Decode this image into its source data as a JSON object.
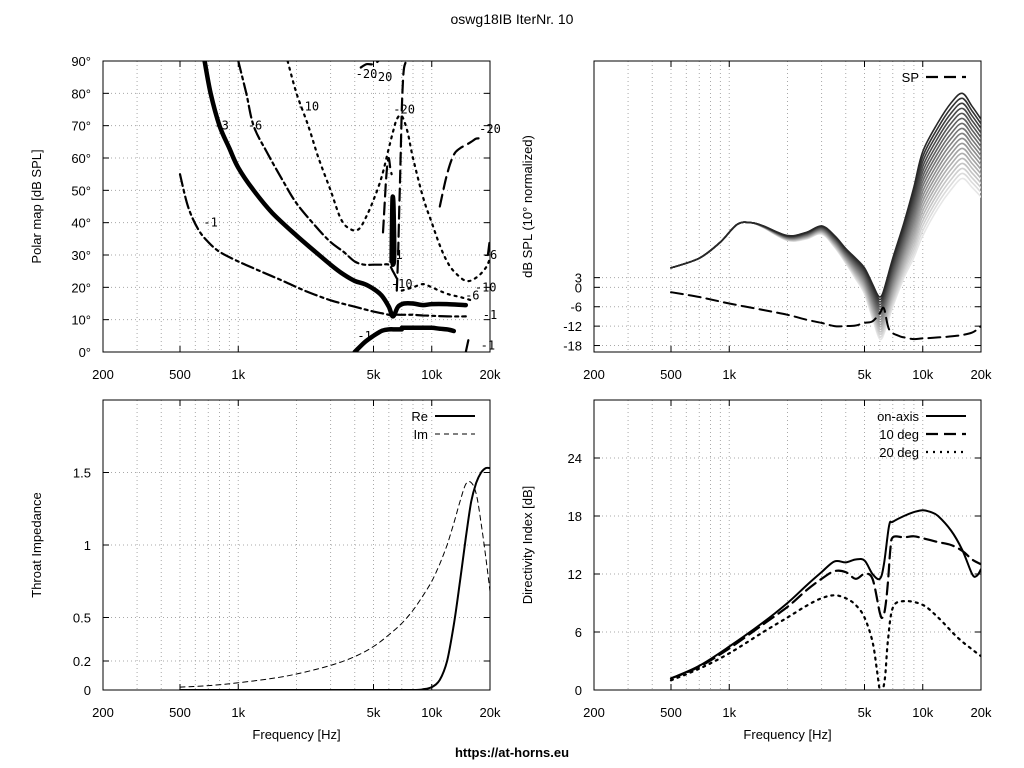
{
  "title": "oswg18IB IterNr. 10",
  "footer": "https://at-horns.eu",
  "chart_data": [
    {
      "id": "polar",
      "type": "line",
      "title": "",
      "ylabel": "Polar map [dB SPL]",
      "xlabel": "",
      "xscale": "log",
      "xlim": [
        200,
        20000
      ],
      "ylim": [
        0,
        90
      ],
      "xticks": [
        {
          "v": 200,
          "t": "200"
        },
        {
          "v": 500,
          "t": "500"
        },
        {
          "v": 1000,
          "t": "1k"
        },
        {
          "v": 5000,
          "t": "5k"
        },
        {
          "v": 10000,
          "t": "10k"
        },
        {
          "v": 20000,
          "t": "20k"
        }
      ],
      "yticks": [
        {
          "v": 0,
          "t": "0°"
        },
        {
          "v": 10,
          "t": "10°"
        },
        {
          "v": 20,
          "t": "20°"
        },
        {
          "v": 30,
          "t": "30°"
        },
        {
          "v": 40,
          "t": "40°"
        },
        {
          "v": 50,
          "t": "50°"
        },
        {
          "v": 60,
          "t": "60°"
        },
        {
          "v": 70,
          "t": "70°"
        },
        {
          "v": 80,
          "t": "80°"
        },
        {
          "v": 90,
          "t": "90°"
        }
      ],
      "grid": true,
      "series": [
        {
          "style": "thick",
          "x": [
            670,
            720,
            800,
            900,
            1000,
            1200,
            1500,
            2000,
            2500,
            3000,
            3500,
            4000,
            4500,
            5000,
            5500,
            6000,
            6300,
            6700,
            7200,
            8000,
            9000,
            10000,
            12000,
            15000
          ],
          "y": [
            90,
            80,
            70,
            63,
            57,
            50,
            43,
            36,
            31,
            27,
            24,
            22,
            21,
            19.5,
            17.5,
            14,
            11,
            14,
            15,
            15,
            14.5,
            14.8,
            14.8,
            14.5
          ]
        },
        {
          "style": "thick",
          "x": [
            6200,
            6250,
            6300,
            6350,
            6400,
            6300,
            6250,
            6200
          ],
          "y": [
            28,
            45,
            48,
            44,
            30,
            27,
            30,
            28
          ]
        },
        {
          "style": "thick",
          "x": [
            4000,
            4500,
            5000,
            5500,
            6000,
            6500,
            7000
          ],
          "y": [
            0,
            3,
            5,
            6.5,
            7,
            7,
            7
          ]
        },
        {
          "style": "thick",
          "x": [
            7000,
            8000,
            9000,
            10000,
            11000,
            12000,
            13000
          ],
          "y": [
            7.5,
            7.5,
            7.5,
            7.5,
            7.2,
            7,
            6.5
          ]
        },
        {
          "style": "dashdot",
          "x": [
            1000,
            1100,
            1200,
            1400,
            1700,
            2000,
            2500,
            3000,
            3500,
            4000,
            4500,
            5000,
            5500,
            6000,
            6300,
            6700
          ],
          "y": [
            90,
            80,
            70,
            62,
            53,
            46,
            39,
            34,
            31,
            28,
            27,
            27,
            27,
            27,
            25,
            22
          ]
        },
        {
          "style": "dashdot",
          "x": [
            500,
            550,
            620,
            700,
            800,
            1000,
            1300,
            1700,
            2200,
            3000,
            4000,
            5000,
            5500,
            6000,
            6300,
            6500,
            7000,
            8000,
            9000,
            10000,
            12000,
            15000
          ],
          "y": [
            55,
            45,
            38,
            34,
            31,
            28,
            25,
            22,
            19,
            16,
            14,
            12.5,
            12,
            11.5,
            11,
            11.5,
            11.5,
            11.5,
            11.3,
            11.2,
            11,
            11
          ]
        },
        {
          "style": "dotted",
          "x": [
            1800,
            2000,
            2300,
            2600,
            3000,
            3400,
            3800,
            4200,
            4600,
            5000,
            5500,
            6000,
            6300,
            6600,
            7000,
            7500,
            8000,
            9000,
            10000,
            11000,
            12000,
            13000,
            15000,
            17000,
            19000,
            20000
          ],
          "y": [
            90,
            80,
            70,
            60,
            50,
            41,
            38,
            38,
            42,
            47,
            54,
            63,
            68,
            72,
            73,
            68,
            60,
            48,
            40,
            33,
            28,
            25,
            22,
            23,
            26,
            29
          ]
        },
        {
          "style": "dotted",
          "x": [
            7000,
            8000,
            9000,
            10000,
            12000,
            14000,
            16000
          ],
          "y": [
            19,
            20,
            21,
            20,
            18,
            17,
            16
          ]
        },
        {
          "style": "dashed",
          "x": [
            5600,
            5700,
            5800,
            5900,
            6000,
            6100,
            6200
          ],
          "y": [
            37,
            45,
            53,
            58,
            60,
            57,
            55
          ]
        },
        {
          "style": "dashed",
          "x": [
            6600,
            6700,
            6800,
            6900,
            7000,
            7100,
            7200,
            7400,
            7600
          ],
          "y": [
            19,
            30,
            45,
            60,
            75,
            84,
            88,
            90,
            90
          ]
        },
        {
          "style": "dashed",
          "x": [
            11000,
            12000,
            13000,
            14000,
            15000,
            16000,
            17000,
            18000
          ],
          "y": [
            45,
            55,
            61,
            63,
            64,
            65,
            66,
            66
          ]
        },
        {
          "style": "dashed",
          "x": [
            19500,
            20000
          ],
          "y": [
            30,
            35
          ]
        },
        {
          "style": "dashed",
          "x": [
            15000,
            15500
          ],
          "y": [
            0,
            4
          ]
        },
        {
          "style": "dashed",
          "x": [
            4300,
            4600,
            5000,
            5300
          ],
          "y": [
            88,
            89,
            89,
            90
          ]
        }
      ],
      "labels": [
        {
          "t": "-20",
          "x": 4600,
          "y": 86
        },
        {
          "t": "-20",
          "x": 5500,
          "y": 85
        },
        {
          "t": "-10",
          "x": 2300,
          "y": 76
        },
        {
          "t": "-20",
          "x": 7200,
          "y": 75
        },
        {
          "t": "-20",
          "x": 20000,
          "y": 69
        },
        {
          "t": "-3",
          "x": 820,
          "y": 70
        },
        {
          "t": "-6",
          "x": 1220,
          "y": 70
        },
        {
          "t": "-1",
          "x": 720,
          "y": 40
        },
        {
          "t": "-1",
          "x": 6500,
          "y": 30
        },
        {
          "t": "-10",
          "x": 7000,
          "y": 21
        },
        {
          "t": "-10",
          "x": 19000,
          "y": 20
        },
        {
          "t": "-6",
          "x": 16200,
          "y": 17.5
        },
        {
          "t": "-6",
          "x": 20000,
          "y": 30
        },
        {
          "t": "-1",
          "x": 20000,
          "y": 11.5
        },
        {
          "t": "-1",
          "x": 19500,
          "y": 2
        },
        {
          "t": "-1",
          "x": 4500,
          "y": 5
        }
      ]
    },
    {
      "id": "spl",
      "type": "line",
      "title": "",
      "ylabel": "dB SPL (10° normalized)",
      "xlabel": "",
      "xscale": "log",
      "xlim": [
        200,
        20000
      ],
      "ylim": [
        -20,
        70
      ],
      "xticks": [
        {
          "v": 200,
          "t": "200"
        },
        {
          "v": 500,
          "t": "500"
        },
        {
          "v": 1000,
          "t": "1k"
        },
        {
          "v": 5000,
          "t": "5k"
        },
        {
          "v": 10000,
          "t": "10k"
        },
        {
          "v": 20000,
          "t": "20k"
        }
      ],
      "yticks": [
        {
          "v": -18,
          "t": "-18"
        },
        {
          "v": -12,
          "t": "-12"
        },
        {
          "v": -6,
          "t": "-6"
        },
        {
          "v": 0,
          "t": "0"
        },
        {
          "v": 3,
          "t": "3"
        }
      ],
      "grid": true,
      "legend": [
        {
          "name": "SP",
          "style": "dashed"
        }
      ],
      "legend_position": "top-right",
      "fan": {
        "count": 18,
        "base": {
          "x": [
            500,
            700,
            900,
            1100,
            1300,
            1500,
            2000,
            2500,
            3000,
            3500,
            4000,
            4500,
            5000,
            5500,
            5800,
            6000,
            6200,
            6500,
            7000,
            8000,
            9000,
            10000,
            12000,
            14000,
            16000,
            18000,
            20000
          ],
          "y": [
            6,
            9,
            14,
            19.5,
            20,
            19,
            16,
            17,
            19,
            16,
            12,
            9,
            6,
            1,
            -2,
            -3,
            -2,
            2,
            9,
            20,
            31,
            42,
            51,
            57,
            60,
            56,
            52
          ]
        },
        "drift": {
          "x": [
            500,
            1000,
            1300,
            2000,
            3000,
            4000,
            5000,
            6000,
            7000,
            8000,
            10000,
            15000,
            20000
          ],
          "y": [
            0,
            0,
            0,
            -1.5,
            -2.5,
            -4.5,
            -8,
            -13,
            -15,
            -17,
            -26,
            -27,
            -24
          ]
        }
      },
      "sp": {
        "x": [
          500,
          700,
          1000,
          1500,
          2000,
          2500,
          3000,
          3500,
          4000,
          4500,
          5000,
          5500,
          6000,
          6300,
          6700,
          7500,
          8000,
          9000,
          10000,
          12000,
          15000,
          18000,
          20000
        ],
        "y": [
          -1.5,
          -3,
          -5,
          -7,
          -8.5,
          -10,
          -11,
          -12,
          -12,
          -11.8,
          -11,
          -10.5,
          -8,
          -6.5,
          -13,
          -15,
          -15.5,
          -16,
          -15.8,
          -15.5,
          -15,
          -14,
          -12
        ]
      }
    },
    {
      "id": "impedance",
      "type": "line",
      "title": "",
      "ylabel": "Throat Impedance",
      "xlabel": "Frequency [Hz]",
      "xscale": "log",
      "xlim": [
        200,
        20000
      ],
      "ylim": [
        0,
        2
      ],
      "xticks": [
        {
          "v": 200,
          "t": "200"
        },
        {
          "v": 500,
          "t": "500"
        },
        {
          "v": 1000,
          "t": "1k"
        },
        {
          "v": 5000,
          "t": "5k"
        },
        {
          "v": 10000,
          "t": "10k"
        },
        {
          "v": 20000,
          "t": "20k"
        }
      ],
      "yticks": [
        {
          "v": 0,
          "t": "0"
        },
        {
          "v": 0.2,
          "t": "0.2"
        },
        {
          "v": 0.5,
          "t": "0.5"
        },
        {
          "v": 1,
          "t": "1"
        },
        {
          "v": 1.5,
          "t": "1.5"
        }
      ],
      "grid": true,
      "legend_position": "top-right",
      "series": [
        {
          "name": "Re",
          "style": "solid",
          "x": [
            500,
            1000,
            2000,
            5000,
            8000,
            9000,
            10000,
            11000,
            12000,
            13000,
            14000,
            15000,
            16000,
            17000,
            18000,
            19000,
            20000
          ],
          "y": [
            0,
            0,
            0,
            0,
            0,
            0.005,
            0.02,
            0.07,
            0.2,
            0.45,
            0.75,
            1.05,
            1.3,
            1.43,
            1.5,
            1.53,
            1.53
          ]
        },
        {
          "name": "Im",
          "style": "dashed",
          "x": [
            500,
            700,
            1000,
            1500,
            2000,
            3000,
            4000,
            5000,
            6000,
            7000,
            8000,
            9000,
            10000,
            11000,
            12000,
            13000,
            14000,
            15000,
            16000,
            17000,
            18000,
            19000,
            20000
          ],
          "y": [
            0.02,
            0.03,
            0.05,
            0.08,
            0.11,
            0.17,
            0.23,
            0.3,
            0.38,
            0.46,
            0.55,
            0.65,
            0.75,
            0.87,
            1.0,
            1.15,
            1.3,
            1.42,
            1.43,
            1.35,
            1.15,
            0.92,
            0.68
          ]
        }
      ]
    },
    {
      "id": "di",
      "type": "line",
      "title": "",
      "ylabel": "Directivity Index [dB]",
      "xlabel": "Frequency [Hz]",
      "xscale": "log",
      "xlim": [
        200,
        20000
      ],
      "ylim": [
        0,
        30
      ],
      "xticks": [
        {
          "v": 200,
          "t": "200"
        },
        {
          "v": 500,
          "t": "500"
        },
        {
          "v": 1000,
          "t": "1k"
        },
        {
          "v": 5000,
          "t": "5k"
        },
        {
          "v": 10000,
          "t": "10k"
        },
        {
          "v": 20000,
          "t": "20k"
        }
      ],
      "yticks": [
        {
          "v": 0,
          "t": "0"
        },
        {
          "v": 6,
          "t": "6"
        },
        {
          "v": 12,
          "t": "12"
        },
        {
          "v": 18,
          "t": "18"
        },
        {
          "v": 24,
          "t": "24"
        }
      ],
      "grid": true,
      "legend_position": "top-right",
      "series": [
        {
          "name": "on-axis",
          "style": "solid",
          "x": [
            500,
            700,
            1000,
            1500,
            2000,
            2500,
            3000,
            3500,
            4000,
            4500,
            5000,
            5500,
            6000,
            6300,
            6700,
            7000,
            8000,
            9000,
            10000,
            11000,
            12000,
            14000,
            16000,
            18000,
            19000,
            20000
          ],
          "y": [
            1.2,
            2.5,
            4.5,
            7,
            9,
            10.8,
            12.2,
            13.3,
            13.2,
            13.5,
            13.4,
            12,
            11.5,
            13,
            17,
            17.4,
            18,
            18.4,
            18.6,
            18.4,
            18,
            16.5,
            14.5,
            12,
            11.8,
            12.5
          ]
        },
        {
          "name": "10 deg",
          "style": "dashed",
          "x": [
            500,
            700,
            1000,
            1500,
            2000,
            2500,
            3000,
            3500,
            4000,
            4500,
            5000,
            5500,
            6000,
            6200,
            6400,
            6600,
            6800,
            7000,
            8000,
            9000,
            10000,
            12000,
            14000,
            16000,
            18000,
            20000
          ],
          "y": [
            1.2,
            2.4,
            4.3,
            6.8,
            8.6,
            10.3,
            11.5,
            12.3,
            12.2,
            11.5,
            12,
            11.5,
            8,
            7.5,
            8.5,
            11,
            14.5,
            15.8,
            15.8,
            15.9,
            15.7,
            15.3,
            15,
            14.4,
            13.5,
            13
          ]
        },
        {
          "name": "20 deg",
          "style": "dotted",
          "x": [
            500,
            700,
            1000,
            1500,
            2000,
            2500,
            3000,
            3500,
            4000,
            4500,
            5000,
            5500,
            5800,
            6000,
            6200,
            6400,
            6600,
            7000,
            8000,
            10000,
            12000,
            15000,
            18000,
            20000
          ],
          "y": [
            1,
            2.2,
            3.8,
            6,
            7.5,
            8.7,
            9.5,
            9.8,
            9.5,
            8.8,
            7.5,
            5,
            2,
            0,
            0,
            1.5,
            5,
            8.5,
            9.2,
            8.8,
            7.5,
            5.5,
            4.2,
            3.5
          ]
        }
      ]
    }
  ]
}
